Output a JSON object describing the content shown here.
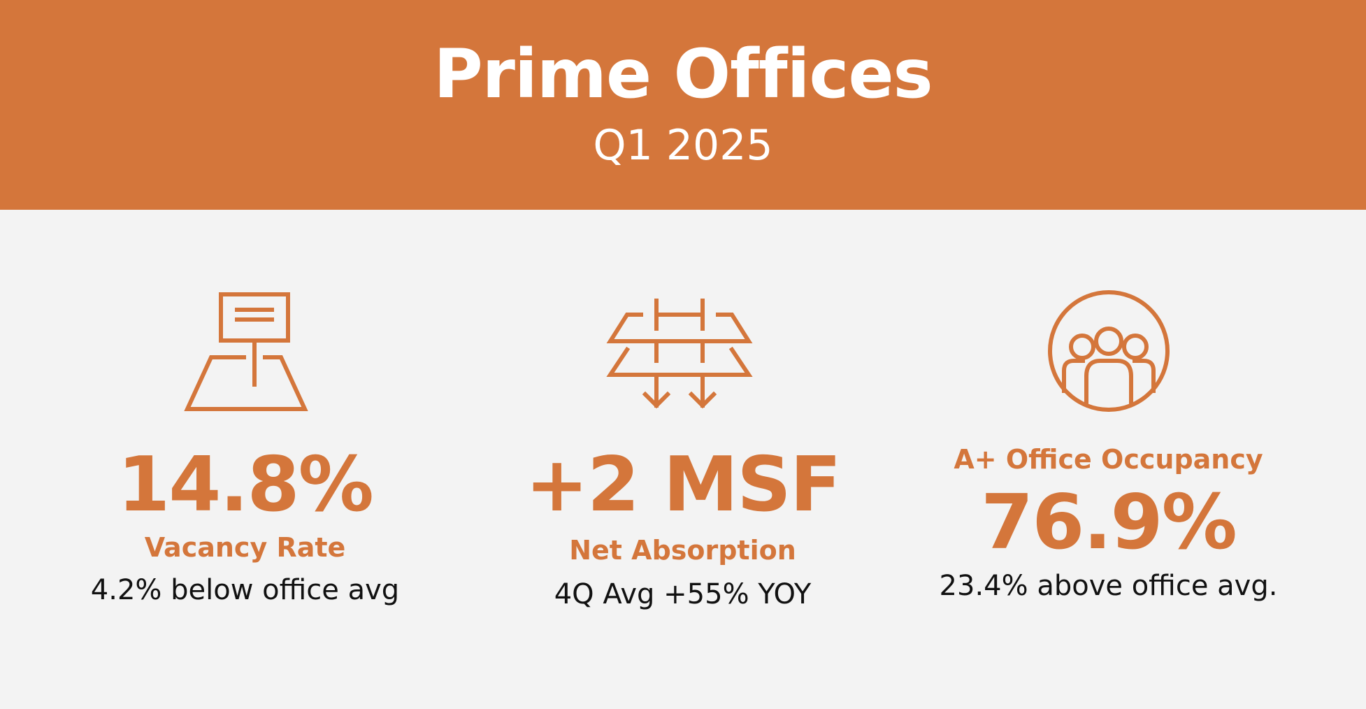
{
  "header": {
    "title": "Prime Offices",
    "subtitle": "Q1 2025"
  },
  "colors": {
    "accent": "#d4763b",
    "background": "#f3f3f3",
    "text": "#111111"
  },
  "stats": [
    {
      "icon": "land-sign-icon",
      "value": "14.8%",
      "label": "Vacancy Rate",
      "note": "4.2% below office avg"
    },
    {
      "icon": "stacked-floors-down-arrows-icon",
      "value": "+2 MSF",
      "label": "Net Absorption",
      "note": "4Q Avg +55% YOY"
    },
    {
      "icon": "group-people-icon",
      "value": "76.9%",
      "label": "A+ Office Occupancy",
      "note": "23.4% above office avg."
    }
  ]
}
